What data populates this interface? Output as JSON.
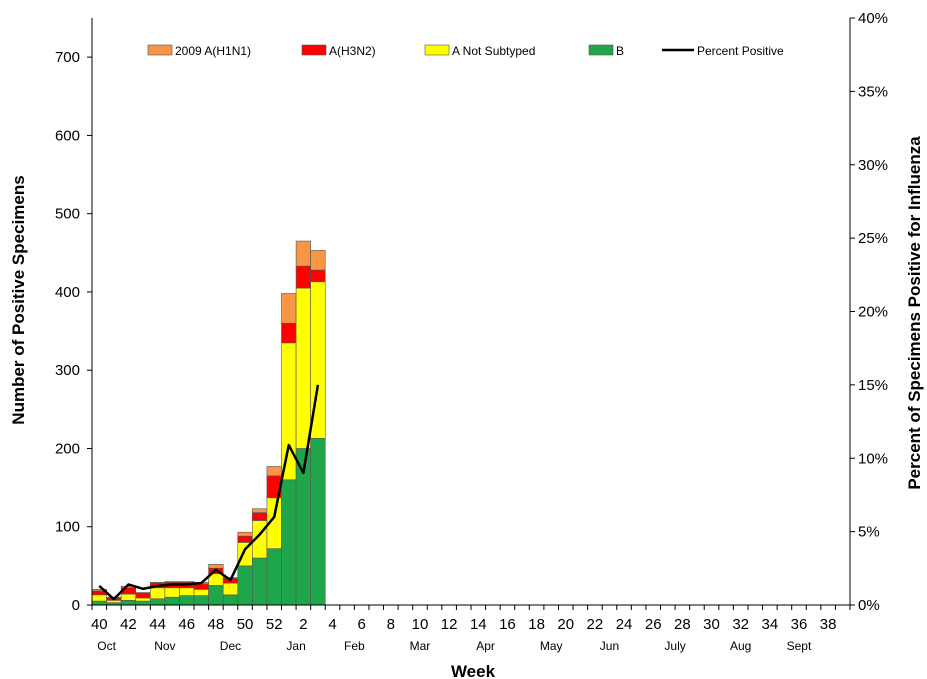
{
  "chart_data": {
    "type": "bar",
    "stacked": true,
    "title": "",
    "xlabel": "Week",
    "ylabel": "Number of Positive Specimens",
    "y2label": "Percent of Specimens Positive for Influenza",
    "ylim": [
      0,
      750
    ],
    "y2lim": [
      0,
      40
    ],
    "yticks": [
      0,
      100,
      200,
      300,
      400,
      500,
      600,
      700
    ],
    "y2ticks": [
      "0%",
      "5%",
      "10%",
      "15%",
      "20%",
      "25%",
      "30%",
      "35%",
      "40%"
    ],
    "weeks": [
      40,
      41,
      42,
      43,
      44,
      45,
      46,
      47,
      48,
      49,
      50,
      51,
      52,
      1,
      2,
      3,
      4,
      5,
      6,
      7,
      8,
      9,
      10,
      11,
      12,
      13,
      14,
      15,
      16,
      17,
      18,
      19,
      20,
      21,
      22,
      23,
      24,
      25,
      26,
      27,
      28,
      29,
      30,
      31,
      32,
      33,
      34,
      35,
      36,
      37,
      38,
      39
    ],
    "week_tick_labels": [
      "40",
      "42",
      "44",
      "46",
      "48",
      "50",
      "52",
      "2",
      "4",
      "6",
      "8",
      "10",
      "12",
      "14",
      "16",
      "18",
      "20",
      "22",
      "24",
      "26",
      "28",
      "30",
      "32",
      "34",
      "36",
      "38"
    ],
    "month_labels": [
      {
        "label": "Oct",
        "week_index": 0.5
      },
      {
        "label": "Nov",
        "week_index": 4.5
      },
      {
        "label": "Dec",
        "week_index": 9
      },
      {
        "label": "Jan",
        "week_index": 13.5
      },
      {
        "label": "Feb",
        "week_index": 17.5
      },
      {
        "label": "Mar",
        "week_index": 22
      },
      {
        "label": "Apr",
        "week_index": 26.5
      },
      {
        "label": "May",
        "week_index": 31
      },
      {
        "label": "Jun",
        "week_index": 35
      },
      {
        "label": "July",
        "week_index": 39.5
      },
      {
        "label": "Aug",
        "week_index": 44
      },
      {
        "label": "Sept",
        "week_index": 48
      }
    ],
    "series": [
      {
        "name": "B",
        "color": "#1fa64a",
        "values": [
          5,
          3,
          6,
          5,
          8,
          10,
          12,
          12,
          25,
          13,
          50,
          60,
          72,
          160,
          200,
          213
        ]
      },
      {
        "name": "A Not Subtyped",
        "color": "#ffff00",
        "values": [
          8,
          3,
          8,
          4,
          14,
          12,
          10,
          8,
          15,
          15,
          30,
          48,
          65,
          175,
          205,
          200
        ]
      },
      {
        "name": "A(H3N2)",
        "color": "#ff0000",
        "values": [
          5,
          3,
          8,
          6,
          6,
          7,
          7,
          7,
          7,
          6,
          8,
          10,
          28,
          25,
          28,
          15
        ]
      },
      {
        "name": "2009 A(H1N1)",
        "color": "#f79646",
        "values": [
          2,
          1,
          2,
          1,
          1,
          1,
          1,
          2,
          5,
          1,
          5,
          5,
          12,
          38,
          32,
          25
        ]
      }
    ],
    "line_series": {
      "name": "Percent Positive",
      "color": "#000000",
      "values": [
        1.3,
        0.4,
        1.4,
        1.1,
        1.3,
        1.4,
        1.4,
        1.5,
        2.4,
        1.7,
        3.8,
        4.8,
        6.0,
        10.9,
        9.0,
        15.0
      ]
    }
  }
}
